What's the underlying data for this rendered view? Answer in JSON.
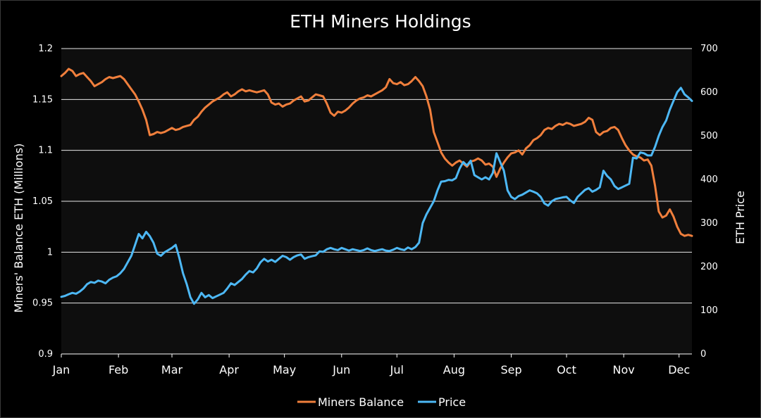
{
  "chart_data": {
    "type": "line",
    "title": "ETH Miners Holdings",
    "y_left_label": "Miners' Balance ETH (Millions)",
    "y_right_label": "ETH Price",
    "y_left_range": [
      0.9,
      1.2
    ],
    "y_left_ticks": [
      "0.9",
      "0.95",
      "1",
      "1.05",
      "1.1",
      "1.15",
      "1.2"
    ],
    "y_right_range": [
      0,
      700
    ],
    "y_right_ticks": [
      "0",
      "100",
      "200",
      "300",
      "400",
      "500",
      "600",
      "700"
    ],
    "x_range_days": [
      0,
      342
    ],
    "x_ticks": [
      "Jan",
      "Feb",
      "Mar",
      "Apr",
      "May",
      "Jun",
      "Jul",
      "Aug",
      "Sep",
      "Oct",
      "Nov",
      "Dec"
    ],
    "x_tick_days": [
      0,
      31,
      60,
      91,
      121,
      152,
      182,
      213,
      244,
      274,
      305,
      335
    ],
    "grid": true,
    "legend_position": "bottom-center",
    "colors": {
      "background": "#0e0e0e",
      "page": "#000000",
      "balance": "#f07f3c",
      "price": "#4db8f5"
    },
    "series": [
      {
        "name": "Miners Balance",
        "axis": "left",
        "x": [
          0,
          2,
          4,
          6,
          8,
          10,
          12,
          14,
          16,
          18,
          20,
          22,
          24,
          26,
          28,
          30,
          32,
          34,
          36,
          38,
          40,
          42,
          44,
          46,
          48,
          50,
          52,
          54,
          56,
          58,
          60,
          62,
          64,
          66,
          68,
          70,
          72,
          74,
          76,
          78,
          80,
          82,
          84,
          86,
          88,
          90,
          92,
          94,
          96,
          98,
          100,
          102,
          104,
          106,
          108,
          110,
          112,
          114,
          116,
          118,
          120,
          122,
          124,
          126,
          128,
          130,
          132,
          134,
          136,
          138,
          140,
          142,
          144,
          146,
          148,
          150,
          152,
          154,
          156,
          158,
          160,
          162,
          164,
          166,
          168,
          170,
          172,
          174,
          176,
          178,
          180,
          182,
          184,
          186,
          188,
          190,
          192,
          194,
          196,
          198,
          200,
          202,
          204,
          206,
          208,
          210,
          212,
          214,
          216,
          218,
          220,
          222,
          224,
          226,
          228,
          230,
          232,
          234,
          236,
          238,
          240,
          242,
          244,
          246,
          248,
          250,
          252,
          254,
          256,
          258,
          260,
          262,
          264,
          266,
          268,
          270,
          272,
          274,
          276,
          278,
          280,
          282,
          284,
          286,
          288,
          290,
          292,
          294,
          296,
          298,
          300,
          302,
          304,
          306,
          308,
          310,
          312,
          314,
          316,
          318,
          320,
          322,
          324,
          326,
          328,
          330,
          332,
          334,
          336,
          338,
          340,
          342
        ],
        "values": [
          1.173,
          1.176,
          1.18,
          1.178,
          1.173,
          1.175,
          1.176,
          1.172,
          1.168,
          1.163,
          1.165,
          1.167,
          1.17,
          1.172,
          1.171,
          1.172,
          1.173,
          1.17,
          1.165,
          1.16,
          1.155,
          1.148,
          1.14,
          1.13,
          1.115,
          1.116,
          1.118,
          1.117,
          1.118,
          1.12,
          1.122,
          1.12,
          1.121,
          1.123,
          1.124,
          1.125,
          1.13,
          1.133,
          1.138,
          1.142,
          1.145,
          1.148,
          1.15,
          1.152,
          1.155,
          1.157,
          1.153,
          1.155,
          1.158,
          1.16,
          1.158,
          1.159,
          1.158,
          1.157,
          1.158,
          1.159,
          1.155,
          1.147,
          1.145,
          1.146,
          1.143,
          1.145,
          1.146,
          1.149,
          1.151,
          1.153,
          1.148,
          1.149,
          1.152,
          1.155,
          1.154,
          1.153,
          1.146,
          1.137,
          1.134,
          1.138,
          1.137,
          1.139,
          1.142,
          1.146,
          1.149,
          1.151,
          1.152,
          1.154,
          1.153,
          1.155,
          1.157,
          1.159,
          1.162,
          1.17,
          1.166,
          1.165,
          1.167,
          1.164,
          1.165,
          1.168,
          1.172,
          1.168,
          1.163,
          1.153,
          1.14,
          1.118,
          1.108,
          1.098,
          1.092,
          1.088,
          1.085,
          1.088,
          1.09,
          1.087,
          1.084,
          1.089,
          1.09,
          1.092,
          1.09,
          1.086,
          1.087,
          1.084,
          1.074,
          1.082,
          1.088,
          1.093,
          1.097,
          1.098,
          1.1,
          1.096,
          1.102,
          1.105,
          1.11,
          1.112,
          1.115,
          1.12,
          1.122,
          1.121,
          1.124,
          1.126,
          1.125,
          1.127,
          1.126,
          1.124,
          1.125,
          1.126,
          1.128,
          1.132,
          1.13,
          1.118,
          1.115,
          1.118,
          1.119,
          1.122,
          1.123,
          1.12,
          1.112,
          1.105,
          1.1,
          1.096,
          1.094,
          1.093,
          1.09,
          1.091,
          1.085,
          1.065,
          1.04,
          1.034,
          1.036,
          1.042,
          1.035,
          1.025,
          1.018,
          1.016,
          1.017,
          1.016
        ]
      },
      {
        "name": "Price",
        "axis": "right",
        "x": [
          0,
          2,
          4,
          6,
          8,
          10,
          12,
          14,
          16,
          18,
          20,
          22,
          24,
          26,
          28,
          30,
          32,
          34,
          36,
          38,
          40,
          42,
          44,
          46,
          48,
          50,
          52,
          54,
          56,
          58,
          60,
          62,
          64,
          66,
          68,
          70,
          72,
          74,
          76,
          78,
          80,
          82,
          84,
          86,
          88,
          90,
          92,
          94,
          96,
          98,
          100,
          102,
          104,
          106,
          108,
          110,
          112,
          114,
          116,
          118,
          120,
          122,
          124,
          126,
          128,
          130,
          132,
          134,
          136,
          138,
          140,
          142,
          144,
          146,
          148,
          150,
          152,
          154,
          156,
          158,
          160,
          162,
          164,
          166,
          168,
          170,
          172,
          174,
          176,
          178,
          180,
          182,
          184,
          186,
          188,
          190,
          192,
          194,
          196,
          198,
          200,
          202,
          204,
          206,
          208,
          210,
          212,
          214,
          216,
          218,
          220,
          222,
          224,
          226,
          228,
          230,
          232,
          234,
          236,
          238,
          240,
          242,
          244,
          246,
          248,
          250,
          252,
          254,
          256,
          258,
          260,
          262,
          264,
          266,
          268,
          270,
          272,
          274,
          276,
          278,
          280,
          282,
          284,
          286,
          288,
          290,
          292,
          294,
          296,
          298,
          300,
          302,
          304,
          306,
          308,
          310,
          312,
          314,
          316,
          318,
          320,
          322,
          324,
          326,
          328,
          330,
          332,
          334,
          336,
          338,
          340,
          342
        ],
        "values": [
          131,
          133,
          137,
          140,
          138,
          143,
          150,
          160,
          165,
          163,
          168,
          166,
          162,
          170,
          175,
          178,
          185,
          195,
          210,
          225,
          250,
          275,
          265,
          280,
          270,
          255,
          230,
          225,
          233,
          238,
          243,
          250,
          220,
          185,
          160,
          130,
          115,
          125,
          140,
          130,
          135,
          128,
          132,
          136,
          140,
          150,
          162,
          158,
          165,
          172,
          182,
          190,
          187,
          196,
          210,
          218,
          212,
          216,
          211,
          218,
          225,
          222,
          216,
          222,
          226,
          228,
          218,
          222,
          224,
          226,
          235,
          234,
          240,
          243,
          240,
          238,
          243,
          240,
          237,
          240,
          238,
          236,
          238,
          242,
          238,
          236,
          238,
          240,
          237,
          236,
          239,
          243,
          240,
          238,
          244,
          240,
          245,
          255,
          300,
          320,
          335,
          350,
          375,
          395,
          396,
          399,
          398,
          403,
          425,
          440,
          432,
          443,
          410,
          405,
          400,
          405,
          400,
          415,
          460,
          440,
          420,
          375,
          360,
          355,
          362,
          365,
          370,
          375,
          372,
          368,
          360,
          345,
          340,
          350,
          355,
          357,
          359,
          360,
          352,
          346,
          360,
          368,
          376,
          380,
          372,
          376,
          382,
          420,
          408,
          400,
          385,
          378,
          382,
          386,
          390,
          450,
          448,
          462,
          460,
          455,
          455,
          475,
          500,
          520,
          535,
          560,
          580,
          600,
          610,
          595,
          588,
          580
        ]
      }
    ]
  },
  "legend": {
    "balance_label": "Miners Balance",
    "price_label": "Price"
  }
}
